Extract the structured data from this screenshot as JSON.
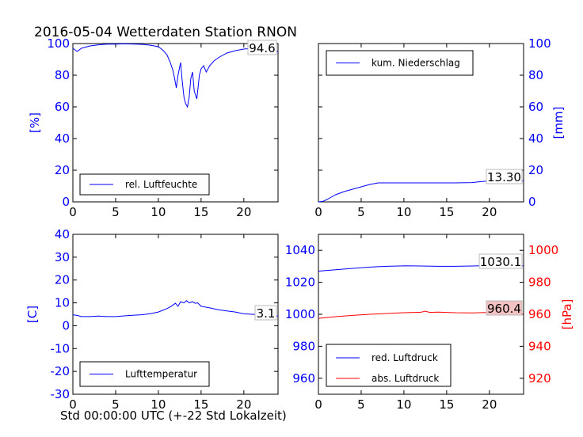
{
  "figure": {
    "title": "2016-05-04 Wetterdaten Station RNON",
    "xlabel": "Std 00:00:00 UTC (+-22 Std Lokalzeit)"
  },
  "chart_data": [
    {
      "id": "humidity",
      "type": "line",
      "ylabel": "[%]",
      "ylabel_side": "left",
      "ylim": [
        0,
        100
      ],
      "yticks": [
        0,
        20,
        40,
        60,
        80,
        100
      ],
      "xlim": [
        0,
        24
      ],
      "xticks": [
        0,
        5,
        10,
        15,
        20
      ],
      "legend_placement": "lower-left",
      "value_box": "94.6",
      "series": [
        {
          "name": "rel. Luftfeuchte",
          "color": "#0000ff",
          "x": [
            0,
            0.5,
            1,
            2,
            3,
            4,
            5,
            6,
            7,
            8,
            9,
            10,
            10.5,
            11,
            11.4,
            11.7,
            11.9,
            12.1,
            12.3,
            12.6,
            12.8,
            13.0,
            13.2,
            13.4,
            13.6,
            13.8,
            14.0,
            14.2,
            14.5,
            14.8,
            15.0,
            15.3,
            15.6,
            16,
            16.5,
            17,
            18,
            19,
            20,
            21,
            22,
            22.5,
            23,
            23.5,
            24
          ],
          "y": [
            97,
            95,
            97,
            98.5,
            99.2,
            99.6,
            99.6,
            99.8,
            99.7,
            99.5,
            99,
            98,
            96,
            93,
            88,
            83,
            78,
            72,
            80,
            88,
            76,
            66,
            62,
            60,
            66,
            78,
            82,
            70,
            65,
            80,
            84,
            86,
            82,
            86,
            89,
            91,
            94,
            95.5,
            96.5,
            97,
            97,
            95,
            93.5,
            95,
            95
          ]
        }
      ]
    },
    {
      "id": "precipitation",
      "type": "line",
      "ylabel": "[mm]",
      "ylabel_side": "right",
      "ylim": [
        0,
        100
      ],
      "yticks": [
        0,
        20,
        40,
        60,
        80,
        100
      ],
      "xlim": [
        0,
        24
      ],
      "xticks": [
        0,
        5,
        10,
        15,
        20
      ],
      "legend_placement": "upper-left",
      "value_box": "13.30",
      "series": [
        {
          "name": "kum. Niederschlag",
          "color": "#0000ff",
          "x": [
            0,
            0.5,
            1,
            1.5,
            2,
            3,
            4,
            5,
            6,
            7,
            8,
            10,
            12,
            14,
            16,
            18,
            19,
            20,
            22,
            24
          ],
          "y": [
            0,
            0.3,
            1.5,
            3,
            4.5,
            6.5,
            8,
            9.5,
            11,
            12,
            12,
            12,
            12,
            12,
            12,
            12.2,
            12.8,
            13.2,
            13.3,
            13.3
          ]
        }
      ]
    },
    {
      "id": "temperature",
      "type": "line",
      "ylabel": "[C]",
      "ylabel_side": "left",
      "ylim": [
        -30,
        40
      ],
      "yticks": [
        -30,
        -20,
        -10,
        0,
        10,
        20,
        30,
        40
      ],
      "xlim": [
        0,
        24
      ],
      "xticks": [
        0,
        5,
        10,
        15,
        20
      ],
      "legend_placement": "lower-left",
      "value_box": "3.1",
      "series": [
        {
          "name": "Lufttemperatur",
          "color": "#0000ff",
          "x": [
            0,
            0.5,
            1,
            2,
            3,
            4,
            5,
            6,
            7,
            8,
            9,
            10,
            11,
            11.5,
            12,
            12.3,
            12.6,
            13,
            13.3,
            13.6,
            14,
            14.3,
            14.6,
            15,
            16,
            17,
            18,
            19,
            20,
            21,
            22,
            23,
            24
          ],
          "y": [
            4.8,
            4.5,
            4,
            4,
            4.2,
            4,
            4,
            4.3,
            4.6,
            4.8,
            5.2,
            6,
            7.5,
            8.5,
            9.8,
            8.5,
            10.5,
            10,
            11,
            10,
            10.5,
            9.8,
            10,
            8.5,
            7.8,
            7,
            6.5,
            6,
            5.2,
            5,
            4.8,
            4.5,
            4.2
          ]
        }
      ]
    },
    {
      "id": "pressure",
      "type": "line",
      "ylabel": "[hPa]",
      "ylabel_side": "right",
      "ylim_left": [
        950,
        1050
      ],
      "yticks_left": [
        960,
        980,
        1000,
        1020,
        1040
      ],
      "ylim_right": [
        910,
        1010
      ],
      "yticks_right": [
        920,
        940,
        960,
        980,
        1000
      ],
      "xlim": [
        0,
        24
      ],
      "xticks": [
        0,
        5,
        10,
        15,
        20
      ],
      "legend_placement": "lower-left",
      "value_boxes": [
        "1030.1",
        "960.4"
      ],
      "series": [
        {
          "name": "red. Luftdruck",
          "color": "#0000ff",
          "axis": "left",
          "x": [
            0,
            2,
            4,
            6,
            8,
            10,
            12,
            14,
            16,
            18,
            20,
            22,
            24
          ],
          "y": [
            1027,
            1027.8,
            1028.7,
            1029.5,
            1030,
            1030.3,
            1030.2,
            1030,
            1030,
            1030.2,
            1030.5,
            1030.6,
            1030.3
          ]
        },
        {
          "name": "abs. Luftdruck",
          "color": "#ff0000",
          "axis": "right",
          "x": [
            0,
            2,
            4,
            6,
            8,
            10,
            12,
            12.5,
            13,
            14,
            16,
            18,
            20,
            22,
            24
          ],
          "y": [
            957.5,
            958.5,
            959.3,
            960,
            960.5,
            961,
            961.3,
            962,
            961.2,
            961.4,
            961,
            960.9,
            961.2,
            961,
            960.2
          ]
        }
      ]
    }
  ]
}
